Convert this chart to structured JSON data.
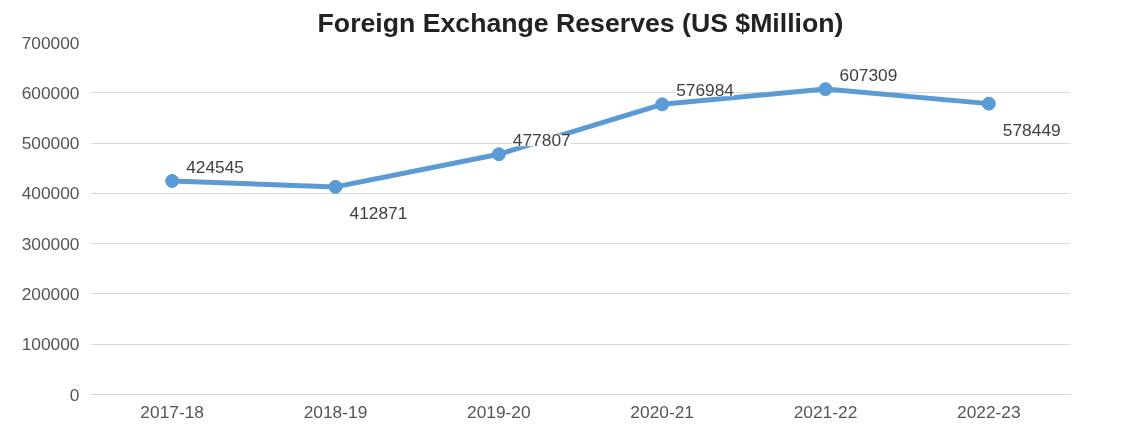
{
  "chart_data": {
    "type": "line",
    "title": "Foreign Exchange Reserves (US $Million)",
    "categories": [
      "2017-18",
      "2018-19",
      "2019-20",
      "2020-21",
      "2021-22",
      "2022-23"
    ],
    "series": [
      {
        "color": "#5b9bd5",
        "values": [
          424545,
          412871,
          477807,
          576984,
          607309,
          578449
        ]
      }
    ],
    "ylim": [
      0,
      700000
    ],
    "yticks": [
      0,
      100000,
      200000,
      300000,
      400000,
      500000,
      600000,
      700000
    ],
    "grid": "y",
    "marker": "circle",
    "line_style": "solid",
    "data_labels": true
  }
}
